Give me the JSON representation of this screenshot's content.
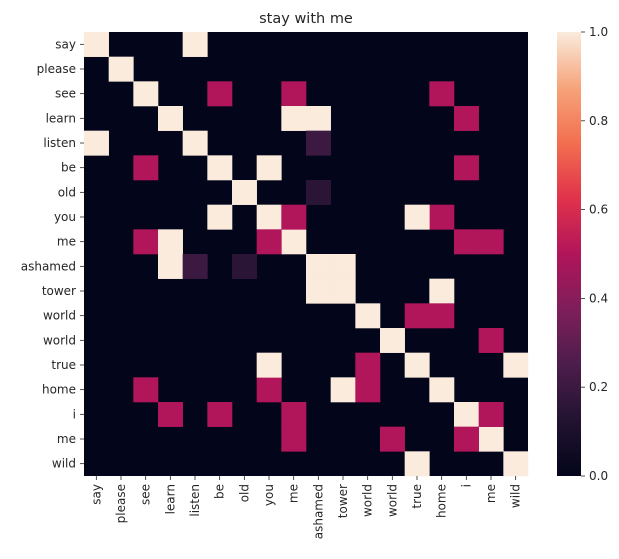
{
  "chart_data": {
    "type": "heatmap",
    "title": "stay with me",
    "row_labels": [
      "say",
      "please",
      "see",
      "learn",
      "listen",
      "be",
      "old",
      "you",
      "me",
      "ashamed",
      "tower",
      "world",
      "world",
      "true",
      "home",
      "i",
      "me",
      "wild"
    ],
    "col_labels": [
      "say",
      "please",
      "see",
      "learn",
      "listen",
      "be",
      "old",
      "you",
      "me",
      "ashamed",
      "tower",
      "world",
      "world",
      "true",
      "home",
      "i",
      "me",
      "wild"
    ],
    "colorbar": {
      "min": 0.0,
      "max": 1.0,
      "ticks": [
        "0.0",
        "0.2",
        "0.4",
        "0.6",
        "0.8",
        "1.0"
      ]
    },
    "cells": [
      {
        "r": 0,
        "c": 0,
        "v": 1.0
      },
      {
        "r": 1,
        "c": 1,
        "v": 1.0
      },
      {
        "r": 2,
        "c": 2,
        "v": 1.0
      },
      {
        "r": 3,
        "c": 3,
        "v": 1.0
      },
      {
        "r": 4,
        "c": 4,
        "v": 1.0
      },
      {
        "r": 5,
        "c": 5,
        "v": 1.0
      },
      {
        "r": 6,
        "c": 6,
        "v": 1.0
      },
      {
        "r": 7,
        "c": 7,
        "v": 1.0
      },
      {
        "r": 8,
        "c": 8,
        "v": 1.0
      },
      {
        "r": 9,
        "c": 9,
        "v": 1.0
      },
      {
        "r": 10,
        "c": 10,
        "v": 1.0
      },
      {
        "r": 11,
        "c": 11,
        "v": 1.0
      },
      {
        "r": 12,
        "c": 12,
        "v": 1.0
      },
      {
        "r": 13,
        "c": 13,
        "v": 1.0
      },
      {
        "r": 14,
        "c": 14,
        "v": 1.0
      },
      {
        "r": 15,
        "c": 15,
        "v": 1.0
      },
      {
        "r": 16,
        "c": 16,
        "v": 1.0
      },
      {
        "r": 17,
        "c": 17,
        "v": 1.0
      },
      {
        "r": 0,
        "c": 4,
        "v": 1.0
      },
      {
        "r": 4,
        "c": 0,
        "v": 1.0
      },
      {
        "r": 2,
        "c": 5,
        "v": 0.5
      },
      {
        "r": 2,
        "c": 8,
        "v": 0.5
      },
      {
        "r": 2,
        "c": 14,
        "v": 0.5
      },
      {
        "r": 5,
        "c": 2,
        "v": 0.5
      },
      {
        "r": 8,
        "c": 2,
        "v": 0.5
      },
      {
        "r": 14,
        "c": 2,
        "v": 0.5
      },
      {
        "r": 3,
        "c": 8,
        "v": 1.0
      },
      {
        "r": 3,
        "c": 9,
        "v": 1.0
      },
      {
        "r": 8,
        "c": 3,
        "v": 1.0
      },
      {
        "r": 9,
        "c": 3,
        "v": 1.0
      },
      {
        "r": 3,
        "c": 15,
        "v": 0.5
      },
      {
        "r": 15,
        "c": 3,
        "v": 0.5
      },
      {
        "r": 4,
        "c": 9,
        "v": 0.2
      },
      {
        "r": 9,
        "c": 4,
        "v": 0.2
      },
      {
        "r": 5,
        "c": 7,
        "v": 1.0
      },
      {
        "r": 7,
        "c": 5,
        "v": 1.0
      },
      {
        "r": 5,
        "c": 15,
        "v": 0.5
      },
      {
        "r": 15,
        "c": 5,
        "v": 0.5
      },
      {
        "r": 6,
        "c": 9,
        "v": 0.15
      },
      {
        "r": 9,
        "c": 6,
        "v": 0.15
      },
      {
        "r": 7,
        "c": 8,
        "v": 0.5
      },
      {
        "r": 8,
        "c": 7,
        "v": 0.5
      },
      {
        "r": 7,
        "c": 14,
        "v": 0.5
      },
      {
        "r": 14,
        "c": 7,
        "v": 0.5
      },
      {
        "r": 8,
        "c": 15,
        "v": 0.5
      },
      {
        "r": 15,
        "c": 8,
        "v": 0.5
      },
      {
        "r": 7,
        "c": 13,
        "v": 1.0
      },
      {
        "r": 13,
        "c": 7,
        "v": 1.0
      },
      {
        "r": 8,
        "c": 16,
        "v": 0.5
      },
      {
        "r": 16,
        "c": 8,
        "v": 0.5
      },
      {
        "r": 9,
        "c": 10,
        "v": 1.0
      },
      {
        "r": 10,
        "c": 9,
        "v": 1.0
      },
      {
        "r": 10,
        "c": 14,
        "v": 1.0
      },
      {
        "r": 14,
        "c": 10,
        "v": 1.0
      },
      {
        "r": 11,
        "c": 13,
        "v": 0.5
      },
      {
        "r": 13,
        "c": 11,
        "v": 0.5
      },
      {
        "r": 12,
        "c": 16,
        "v": 0.5
      },
      {
        "r": 16,
        "c": 12,
        "v": 0.5
      },
      {
        "r": 13,
        "c": 17,
        "v": 1.0
      },
      {
        "r": 17,
        "c": 13,
        "v": 1.0
      },
      {
        "r": 14,
        "c": 11,
        "v": 0.5
      },
      {
        "r": 11,
        "c": 14,
        "v": 0.5
      },
      {
        "r": 15,
        "c": 16,
        "v": 0.5
      },
      {
        "r": 16,
        "c": 15,
        "v": 0.5
      }
    ]
  }
}
